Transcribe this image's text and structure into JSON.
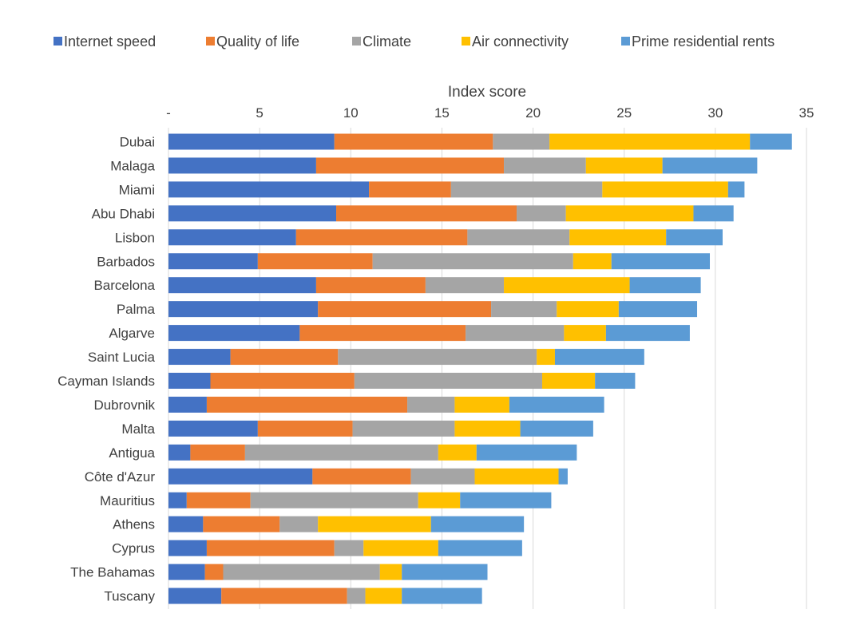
{
  "chart_data": {
    "type": "bar",
    "orientation": "horizontal",
    "stacked": true,
    "title": "",
    "xlabel": "Index score",
    "ylabel": "",
    "xlim": [
      0,
      35
    ],
    "x_ticks": [
      0,
      5,
      10,
      15,
      20,
      25,
      30,
      35
    ],
    "x_tick_labels": [
      "-",
      "5",
      "10",
      "15",
      "20",
      "25",
      "30",
      "35"
    ],
    "x_axis_position": "top",
    "grid": "vertical",
    "legend_position": "top",
    "categories": [
      "Dubai",
      "Malaga",
      "Miami",
      "Abu Dhabi",
      "Lisbon",
      "Barbados",
      "Barcelona",
      "Palma",
      "Algarve",
      "Saint Lucia",
      "Cayman Islands",
      "Dubrovnik",
      "Malta",
      "Antigua",
      "Côte d'Azur",
      "Mauritius",
      "Athens",
      "Cyprus",
      "The Bahamas",
      "Tuscany"
    ],
    "series": [
      {
        "name": "Internet speed",
        "color": "#4472C4",
        "values": [
          9.1,
          8.1,
          11.0,
          9.2,
          7.0,
          4.9,
          8.1,
          8.2,
          7.2,
          3.4,
          2.3,
          2.1,
          4.9,
          1.2,
          7.9,
          1.0,
          1.9,
          2.1,
          2.0,
          2.9
        ]
      },
      {
        "name": "Quality of life",
        "color": "#ED7D31",
        "values": [
          8.7,
          10.3,
          4.5,
          9.9,
          9.4,
          6.3,
          6.0,
          9.5,
          9.1,
          5.9,
          7.9,
          11.0,
          5.2,
          3.0,
          5.4,
          3.5,
          4.2,
          7.0,
          1.0,
          6.9
        ]
      },
      {
        "name": "Climate",
        "color": "#A5A5A5",
        "values": [
          3.1,
          4.5,
          8.3,
          2.7,
          5.6,
          11.0,
          4.3,
          3.6,
          5.4,
          10.9,
          10.3,
          2.6,
          5.6,
          10.6,
          3.5,
          9.2,
          2.1,
          1.6,
          8.6,
          1.0
        ]
      },
      {
        "name": "Air connectivity",
        "color": "#FFC000",
        "values": [
          11.0,
          4.2,
          6.9,
          7.0,
          5.3,
          2.1,
          6.9,
          3.4,
          2.3,
          1.0,
          2.9,
          3.0,
          3.6,
          2.1,
          4.6,
          2.3,
          6.2,
          4.1,
          1.2,
          2.0
        ]
      },
      {
        "name": "Prime residential rents",
        "color": "#5B9BD5",
        "values": [
          2.3,
          5.2,
          0.9,
          2.2,
          3.1,
          5.4,
          3.9,
          4.3,
          4.6,
          4.9,
          2.2,
          5.2,
          4.0,
          5.5,
          0.5,
          5.0,
          5.1,
          4.6,
          4.7,
          4.4
        ]
      }
    ]
  }
}
